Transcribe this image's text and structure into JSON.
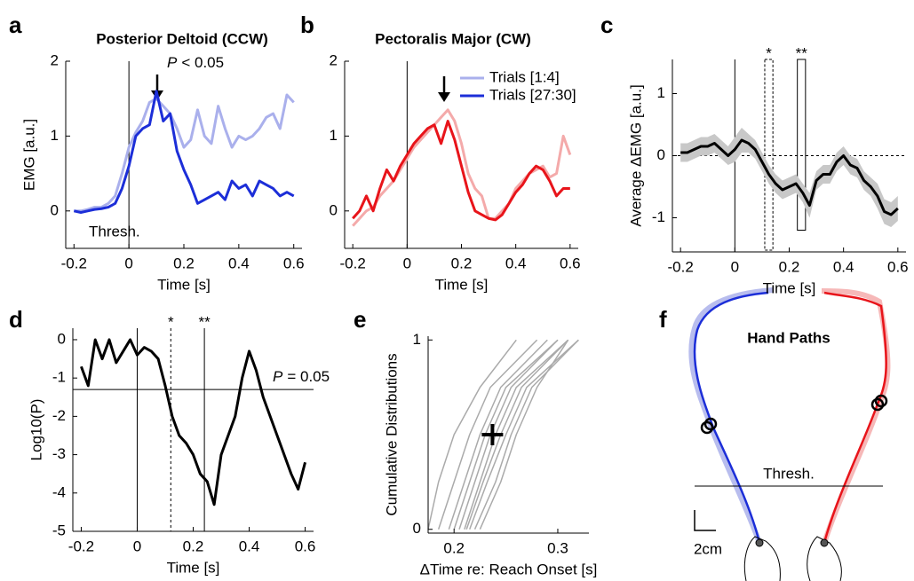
{
  "chart_data": [
    {
      "panel": "a",
      "type": "line",
      "title": "Posterior Deltoid (CCW)",
      "xlabel": "Time [s]",
      "ylabel": "EMG [a.u.]",
      "x": [
        -0.2,
        -0.175,
        -0.15,
        -0.125,
        -0.1,
        -0.075,
        -0.05,
        -0.025,
        0,
        0.025,
        0.05,
        0.075,
        0.1,
        0.125,
        0.15,
        0.175,
        0.2,
        0.225,
        0.25,
        0.275,
        0.3,
        0.325,
        0.35,
        0.375,
        0.4,
        0.425,
        0.45,
        0.475,
        0.5,
        0.525,
        0.55,
        0.575,
        0.6
      ],
      "series": [
        {
          "name": "Trials [1:4]",
          "color": "#aab0ec",
          "values": [
            0,
            0,
            0.02,
            0.05,
            0.05,
            0.1,
            0.2,
            0.5,
            0.85,
            1.05,
            1.2,
            1.45,
            1.5,
            1.4,
            1.3,
            1.1,
            0.85,
            0.95,
            1.35,
            1.0,
            0.9,
            1.4,
            1.1,
            0.85,
            1.0,
            0.95,
            1.0,
            1.1,
            1.25,
            1.3,
            1.1,
            1.55,
            1.45
          ]
        },
        {
          "name": "Trials [27:30]",
          "color": "#1c2ed8",
          "values": [
            0,
            -0.02,
            0,
            0.02,
            0.03,
            0.05,
            0.1,
            0.3,
            0.6,
            1.0,
            1.1,
            1.15,
            1.6,
            1.2,
            1.3,
            0.8,
            0.55,
            0.35,
            0.1,
            0.15,
            0.2,
            0.25,
            0.15,
            0.4,
            0.3,
            0.35,
            0.2,
            0.4,
            0.35,
            0.3,
            0.2,
            0.25,
            0.2
          ]
        }
      ],
      "xlim": [
        -0.23,
        0.63
      ],
      "ylim": [
        -0.5,
        2
      ],
      "xticks": [
        -0.2,
        0,
        0.2,
        0.4,
        0.6
      ],
      "yticks": [
        0,
        1,
        2
      ],
      "vlines": [
        0
      ],
      "annotation": "Thresh.",
      "p_symbol": "P",
      "p_text": "< 0.05"
    },
    {
      "panel": "b",
      "type": "line",
      "title": "Pectoralis Major (CW)",
      "xlabel": "Time [s]",
      "x": [
        -0.2,
        -0.175,
        -0.15,
        -0.125,
        -0.1,
        -0.075,
        -0.05,
        -0.025,
        0,
        0.025,
        0.05,
        0.075,
        0.1,
        0.125,
        0.15,
        0.175,
        0.2,
        0.225,
        0.25,
        0.275,
        0.3,
        0.325,
        0.35,
        0.375,
        0.4,
        0.425,
        0.45,
        0.475,
        0.5,
        0.525,
        0.55,
        0.575,
        0.6
      ],
      "series": [
        {
          "color": "#f4aaaa",
          "values": [
            -0.2,
            -0.1,
            0,
            0.05,
            0.2,
            0.3,
            0.4,
            0.55,
            0.7,
            0.85,
            0.95,
            1.05,
            1.15,
            1.25,
            1.35,
            1.2,
            0.9,
            0.5,
            0.3,
            0.2,
            -0.1,
            -0.1,
            0,
            0.1,
            0.3,
            0.4,
            0.5,
            0.55,
            0.6,
            0.45,
            0.5,
            1.0,
            0.75
          ]
        },
        {
          "color": "#e8141a",
          "values": [
            -0.1,
            0,
            0.2,
            0,
            0.3,
            0.55,
            0.4,
            0.6,
            0.75,
            0.9,
            1.0,
            1.1,
            1.15,
            0.9,
            1.2,
            0.95,
            0.6,
            0.25,
            0,
            -0.05,
            -0.1,
            -0.12,
            -0.05,
            0.1,
            0.25,
            0.35,
            0.5,
            0.6,
            0.55,
            0.4,
            0.2,
            0.3,
            0.3
          ]
        }
      ],
      "xlim": [
        -0.23,
        0.63
      ],
      "ylim": [
        -0.5,
        2
      ],
      "xticks": [
        -0.2,
        0,
        0.2,
        0.4,
        0.6
      ],
      "yticks": [
        0,
        1,
        2
      ],
      "vlines": [
        0
      ]
    },
    {
      "panel": "c",
      "type": "band",
      "xlabel": "Time [s]",
      "ylabel": "Average ΔEMG [a.u.]",
      "x": [
        -0.2,
        -0.175,
        -0.15,
        -0.125,
        -0.1,
        -0.075,
        -0.05,
        -0.025,
        0,
        0.025,
        0.05,
        0.075,
        0.1,
        0.125,
        0.15,
        0.175,
        0.2,
        0.225,
        0.25,
        0.275,
        0.3,
        0.325,
        0.35,
        0.375,
        0.4,
        0.425,
        0.45,
        0.475,
        0.5,
        0.525,
        0.55,
        0.575,
        0.6
      ],
      "series": [
        {
          "color": "#000000",
          "band_color": "#c8c8c8",
          "values": [
            0.05,
            0.05,
            0.1,
            0.15,
            0.15,
            0.2,
            0.1,
            0,
            0.1,
            0.25,
            0.2,
            0.1,
            -0.1,
            -0.3,
            -0.45,
            -0.55,
            -0.5,
            -0.45,
            -0.6,
            -0.8,
            -0.4,
            -0.3,
            -0.3,
            -0.1,
            0,
            -0.15,
            -0.2,
            -0.4,
            -0.5,
            -0.65,
            -0.9,
            -0.95,
            -0.85
          ],
          "error": [
            0.15,
            0.15,
            0.15,
            0.15,
            0.15,
            0.15,
            0.15,
            0.15,
            0.2,
            0.2,
            0.15,
            0.15,
            0.15,
            0.15,
            0.15,
            0.15,
            0.15,
            0.15,
            0.15,
            0.2,
            0.15,
            0.15,
            0.15,
            0.15,
            0.15,
            0.15,
            0.15,
            0.15,
            0.15,
            0.2,
            0.2,
            0.2,
            0.2
          ]
        }
      ],
      "xlim": [
        -0.23,
        0.63
      ],
      "ylim": [
        -1.55,
        1.55
      ],
      "xticks": [
        -0.2,
        0,
        0.2,
        0.4,
        0.6
      ],
      "yticks": [
        -1,
        0,
        1
      ],
      "vlines": [
        0
      ],
      "hline": 0,
      "windows": [
        [
          0.11,
          0.14
        ],
        [
          0.23,
          0.26
        ]
      ],
      "window_dashed": [
        true,
        false
      ],
      "window_labels": [
        "*",
        "**"
      ]
    },
    {
      "panel": "d",
      "type": "line",
      "xlabel": "Time [s]",
      "ylabel": "Log10(P)",
      "x": [
        -0.2,
        -0.175,
        -0.15,
        -0.125,
        -0.1,
        -0.075,
        -0.05,
        -0.025,
        0,
        0.025,
        0.05,
        0.075,
        0.1,
        0.125,
        0.15,
        0.175,
        0.2,
        0.225,
        0.25,
        0.275,
        0.3,
        0.325,
        0.35,
        0.375,
        0.4,
        0.425,
        0.45,
        0.475,
        0.5,
        0.525,
        0.55,
        0.575,
        0.6
      ],
      "series": [
        {
          "color": "#000000",
          "values": [
            -0.7,
            -1.2,
            0,
            -0.5,
            0,
            -0.6,
            -0.3,
            0,
            -0.4,
            -0.2,
            -0.3,
            -0.5,
            -1.2,
            -2.0,
            -2.5,
            -2.7,
            -3.0,
            -3.5,
            -3.7,
            -4.3,
            -3.0,
            -2.5,
            -2.0,
            -1.0,
            -0.3,
            -0.8,
            -1.5,
            -2.0,
            -2.5,
            -3.0,
            -3.5,
            -3.9,
            -3.2
          ]
        }
      ],
      "xlim": [
        -0.23,
        0.63
      ],
      "ylim": [
        -5,
        0.3
      ],
      "xticks": [
        -0.2,
        0,
        0.2,
        0.4,
        0.6
      ],
      "yticks": [
        -5,
        -4,
        -3,
        -2,
        -1,
        0
      ],
      "vlines": [
        0,
        0.12,
        0.24
      ],
      "vline_dashed": [
        false,
        true,
        false
      ],
      "vline_labels": [
        null,
        "*",
        "**"
      ],
      "hline": -1.3,
      "p_symbol": "P",
      "p_text": "= 0.05"
    },
    {
      "panel": "e",
      "type": "cdf",
      "xlabel": "ΔTime re: Reach Onset [s]",
      "ylabel": "Cumulative Distributions",
      "series": [
        {
          "color": "#aaaaaa",
          "x": [
            0.175,
            0.185,
            0.2,
            0.225,
            0.26
          ],
          "values": [
            0,
            0.25,
            0.5,
            0.75,
            1
          ]
        },
        {
          "color": "#aaaaaa",
          "x": [
            0.185,
            0.2,
            0.215,
            0.235,
            0.28
          ],
          "values": [
            0,
            0.25,
            0.5,
            0.75,
            1
          ]
        },
        {
          "color": "#aaaaaa",
          "x": [
            0.195,
            0.21,
            0.225,
            0.245,
            0.29
          ],
          "values": [
            0,
            0.25,
            0.5,
            0.75,
            1
          ]
        },
        {
          "color": "#aaaaaa",
          "x": [
            0.2,
            0.215,
            0.23,
            0.25,
            0.3
          ],
          "values": [
            0,
            0.25,
            0.5,
            0.75,
            1
          ]
        },
        {
          "color": "#aaaaaa",
          "x": [
            0.205,
            0.22,
            0.235,
            0.255,
            0.3
          ],
          "values": [
            0,
            0.25,
            0.5,
            0.75,
            1
          ]
        },
        {
          "color": "#aaaaaa",
          "x": [
            0.21,
            0.225,
            0.24,
            0.26,
            0.31
          ],
          "values": [
            0,
            0.25,
            0.5,
            0.75,
            1
          ]
        },
        {
          "color": "#aaaaaa",
          "x": [
            0.212,
            0.228,
            0.245,
            0.265,
            0.31
          ],
          "values": [
            0,
            0.25,
            0.5,
            0.75,
            1
          ]
        },
        {
          "color": "#aaaaaa",
          "x": [
            0.215,
            0.232,
            0.25,
            0.27,
            0.32
          ],
          "values": [
            0,
            0.25,
            0.5,
            0.75,
            1
          ]
        },
        {
          "color": "#aaaaaa",
          "x": [
            0.22,
            0.24,
            0.255,
            0.275,
            0.32
          ],
          "values": [
            0,
            0.25,
            0.5,
            0.75,
            1
          ]
        },
        {
          "color": "#aaaaaa",
          "x": [
            0.225,
            0.245,
            0.26,
            0.28,
            0.31
          ],
          "values": [
            0,
            0.25,
            0.5,
            0.75,
            1
          ]
        }
      ],
      "marker": {
        "x": 0.237,
        "y": 0.5
      },
      "xlim": [
        0.175,
        0.33
      ],
      "ylim": [
        -0.02,
        1.02
      ],
      "xticks": [
        0.2,
        0.3
      ],
      "yticks": [
        0,
        1
      ]
    },
    {
      "panel": "f",
      "type": "diagram",
      "title": "Hand Paths",
      "annotation": "Thresh.",
      "scale_label": "2cm"
    }
  ]
}
